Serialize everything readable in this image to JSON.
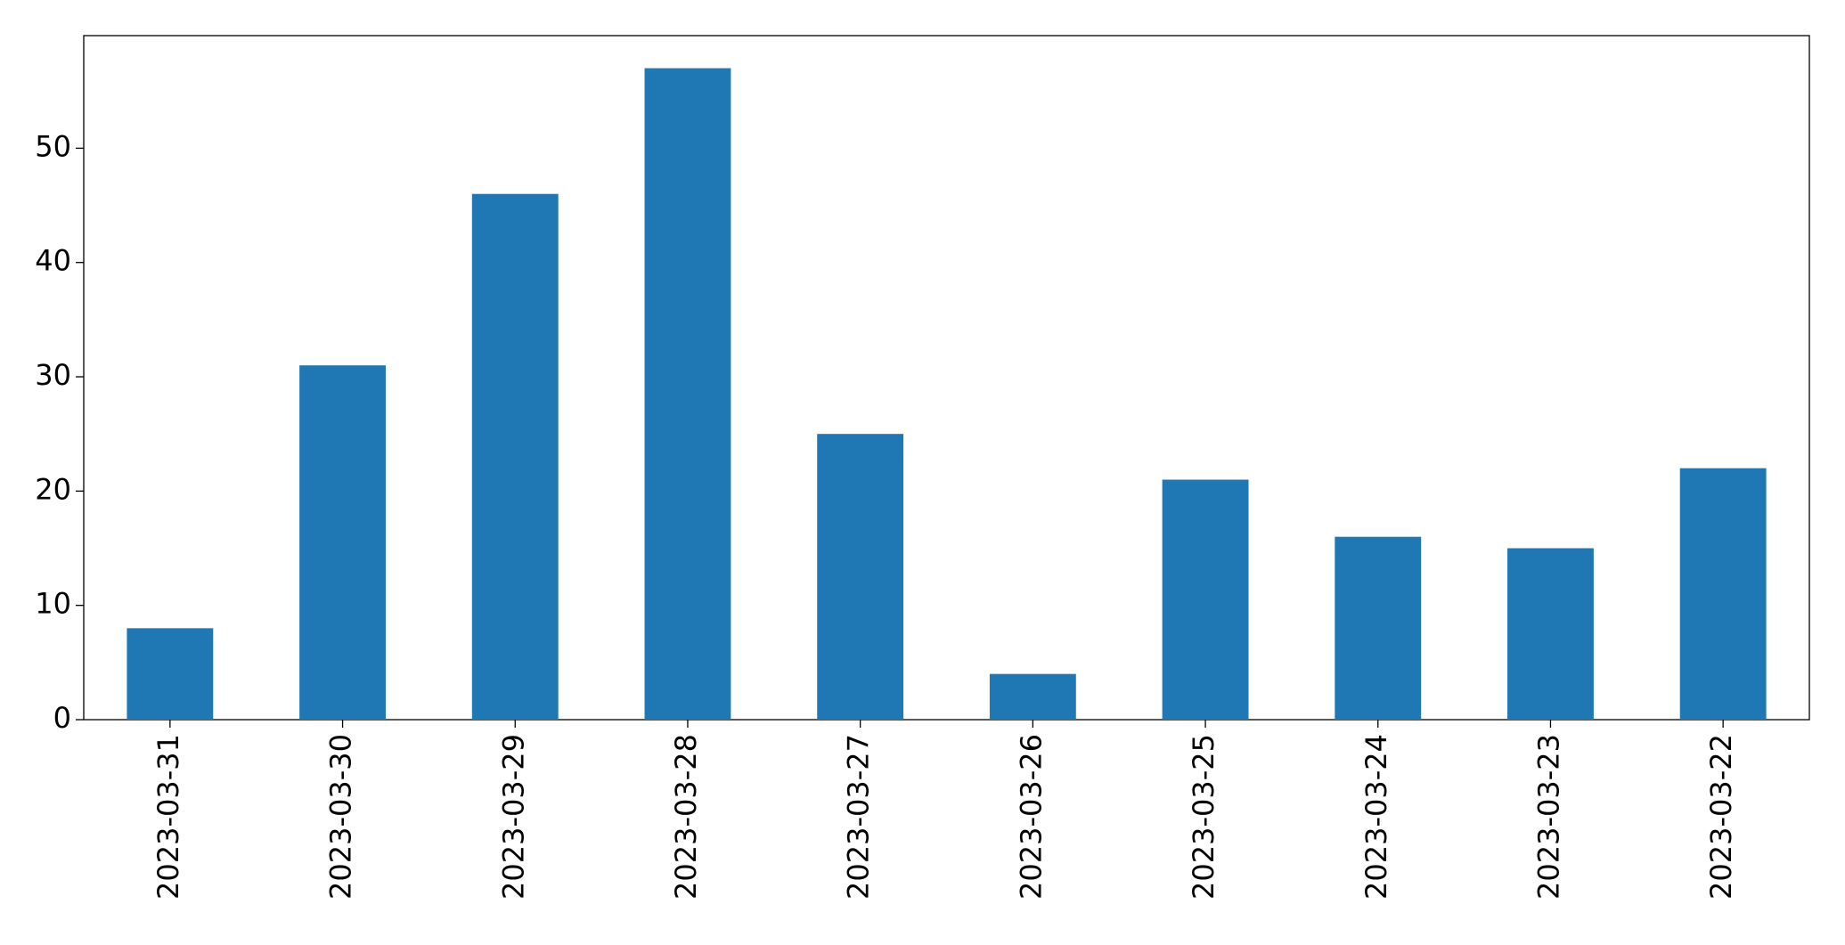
{
  "chart_data": {
    "type": "bar",
    "categories": [
      "2023-03-31",
      "2023-03-30",
      "2023-03-29",
      "2023-03-28",
      "2023-03-27",
      "2023-03-26",
      "2023-03-25",
      "2023-03-24",
      "2023-03-23",
      "2023-03-22"
    ],
    "values": [
      8,
      31,
      46,
      57,
      25,
      4,
      21,
      16,
      15,
      22
    ],
    "color": "#1f77b4",
    "ylim": [
      0,
      59.85
    ],
    "yticks": [
      0,
      10,
      20,
      30,
      40,
      50
    ],
    "grid": false
  }
}
